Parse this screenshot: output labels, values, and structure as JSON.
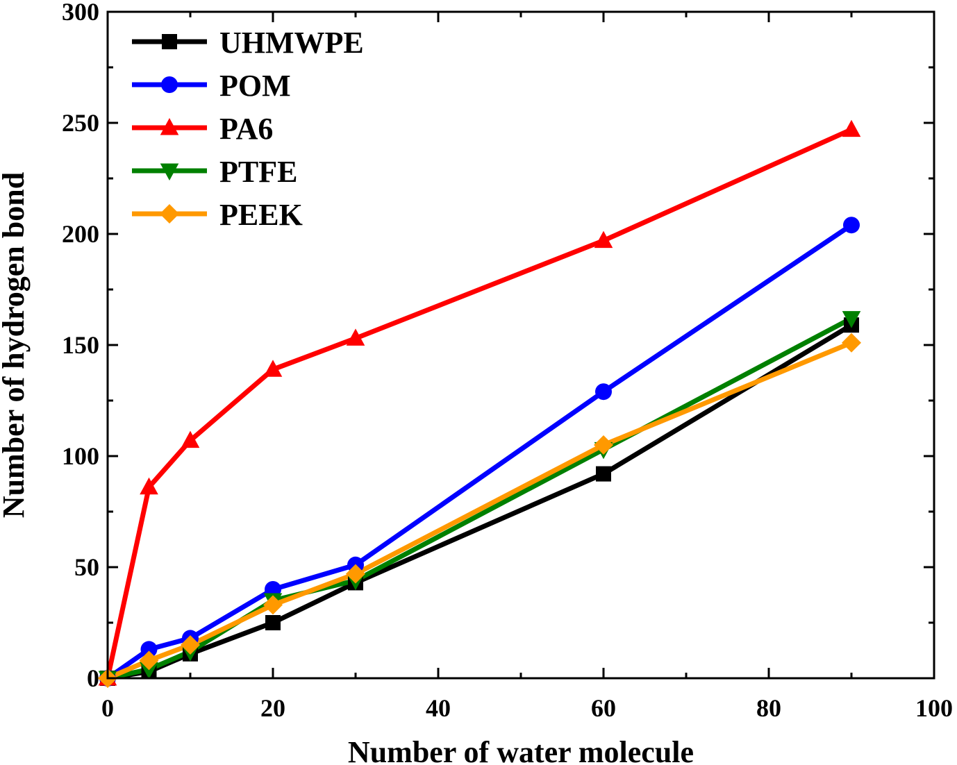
{
  "chart_data": {
    "type": "line",
    "title": "",
    "xlabel": "Number of water molecule",
    "ylabel": "Number of hydrogen bond",
    "xlim": [
      0,
      100
    ],
    "ylim": [
      0,
      300
    ],
    "xticks": [
      0,
      20,
      40,
      60,
      80,
      100
    ],
    "yticks": [
      0,
      50,
      100,
      150,
      200,
      250,
      300
    ],
    "x_tick_labels": [
      "0",
      "20",
      "40",
      "60",
      "80",
      "100"
    ],
    "y_tick_labels": [
      "0",
      "50",
      "100",
      "150",
      "200",
      "250",
      "300"
    ],
    "grid": false,
    "legend_position": "top-left",
    "x": [
      0,
      5,
      10,
      20,
      30,
      60,
      90
    ],
    "series": [
      {
        "name": "UHMWPE",
        "color": "#000000",
        "marker": "square",
        "values": [
          0,
          3,
          11,
          25,
          43,
          92,
          159
        ]
      },
      {
        "name": "POM",
        "color": "#0000ff",
        "marker": "circle",
        "values": [
          0,
          13,
          18,
          40,
          51,
          129,
          204
        ]
      },
      {
        "name": "PA6",
        "color": "#ff0000",
        "marker": "triangle-up",
        "values": [
          0,
          86,
          107,
          139,
          153,
          197,
          247
        ]
      },
      {
        "name": "PTFE",
        "color": "#008000",
        "marker": "triangle-down",
        "values": [
          0,
          4,
          12,
          35,
          44,
          103,
          162
        ]
      },
      {
        "name": "PEEK",
        "color": "#ff9900",
        "marker": "diamond",
        "values": [
          0,
          8,
          15,
          33,
          47,
          105,
          151
        ]
      }
    ]
  }
}
